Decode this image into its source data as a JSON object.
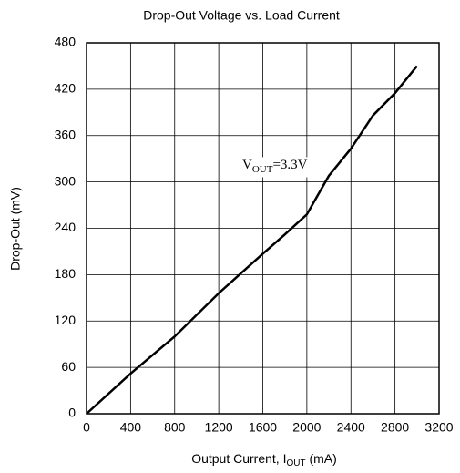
{
  "chart_data": {
    "type": "line",
    "title": "Drop-Out Voltage vs. Load Current",
    "xlabel": {
      "text": "Output Current, I",
      "sub": "OUT",
      "suffix": " (mA)"
    },
    "ylabel": "Drop-Out (mV)",
    "annotation": {
      "text": "V",
      "sub": "OUT",
      "suffix": "=3.3V"
    },
    "x": [
      0,
      400,
      800,
      1200,
      1600,
      1800,
      2000,
      2200,
      2400,
      2600,
      2800,
      3000
    ],
    "series": [
      {
        "name": "VOUT=3.3V",
        "color": "#000000",
        "values": [
          0,
          52,
          100,
          156,
          207,
          232,
          258,
          308,
          343,
          386,
          415,
          450
        ]
      }
    ],
    "xlim": [
      0,
      3200
    ],
    "xticks": [
      0,
      400,
      800,
      1200,
      1600,
      2000,
      2400,
      2800,
      3200
    ],
    "ylim": [
      0,
      480
    ],
    "yticks": [
      0,
      60,
      120,
      180,
      240,
      300,
      360,
      420,
      480
    ],
    "grid": true
  }
}
